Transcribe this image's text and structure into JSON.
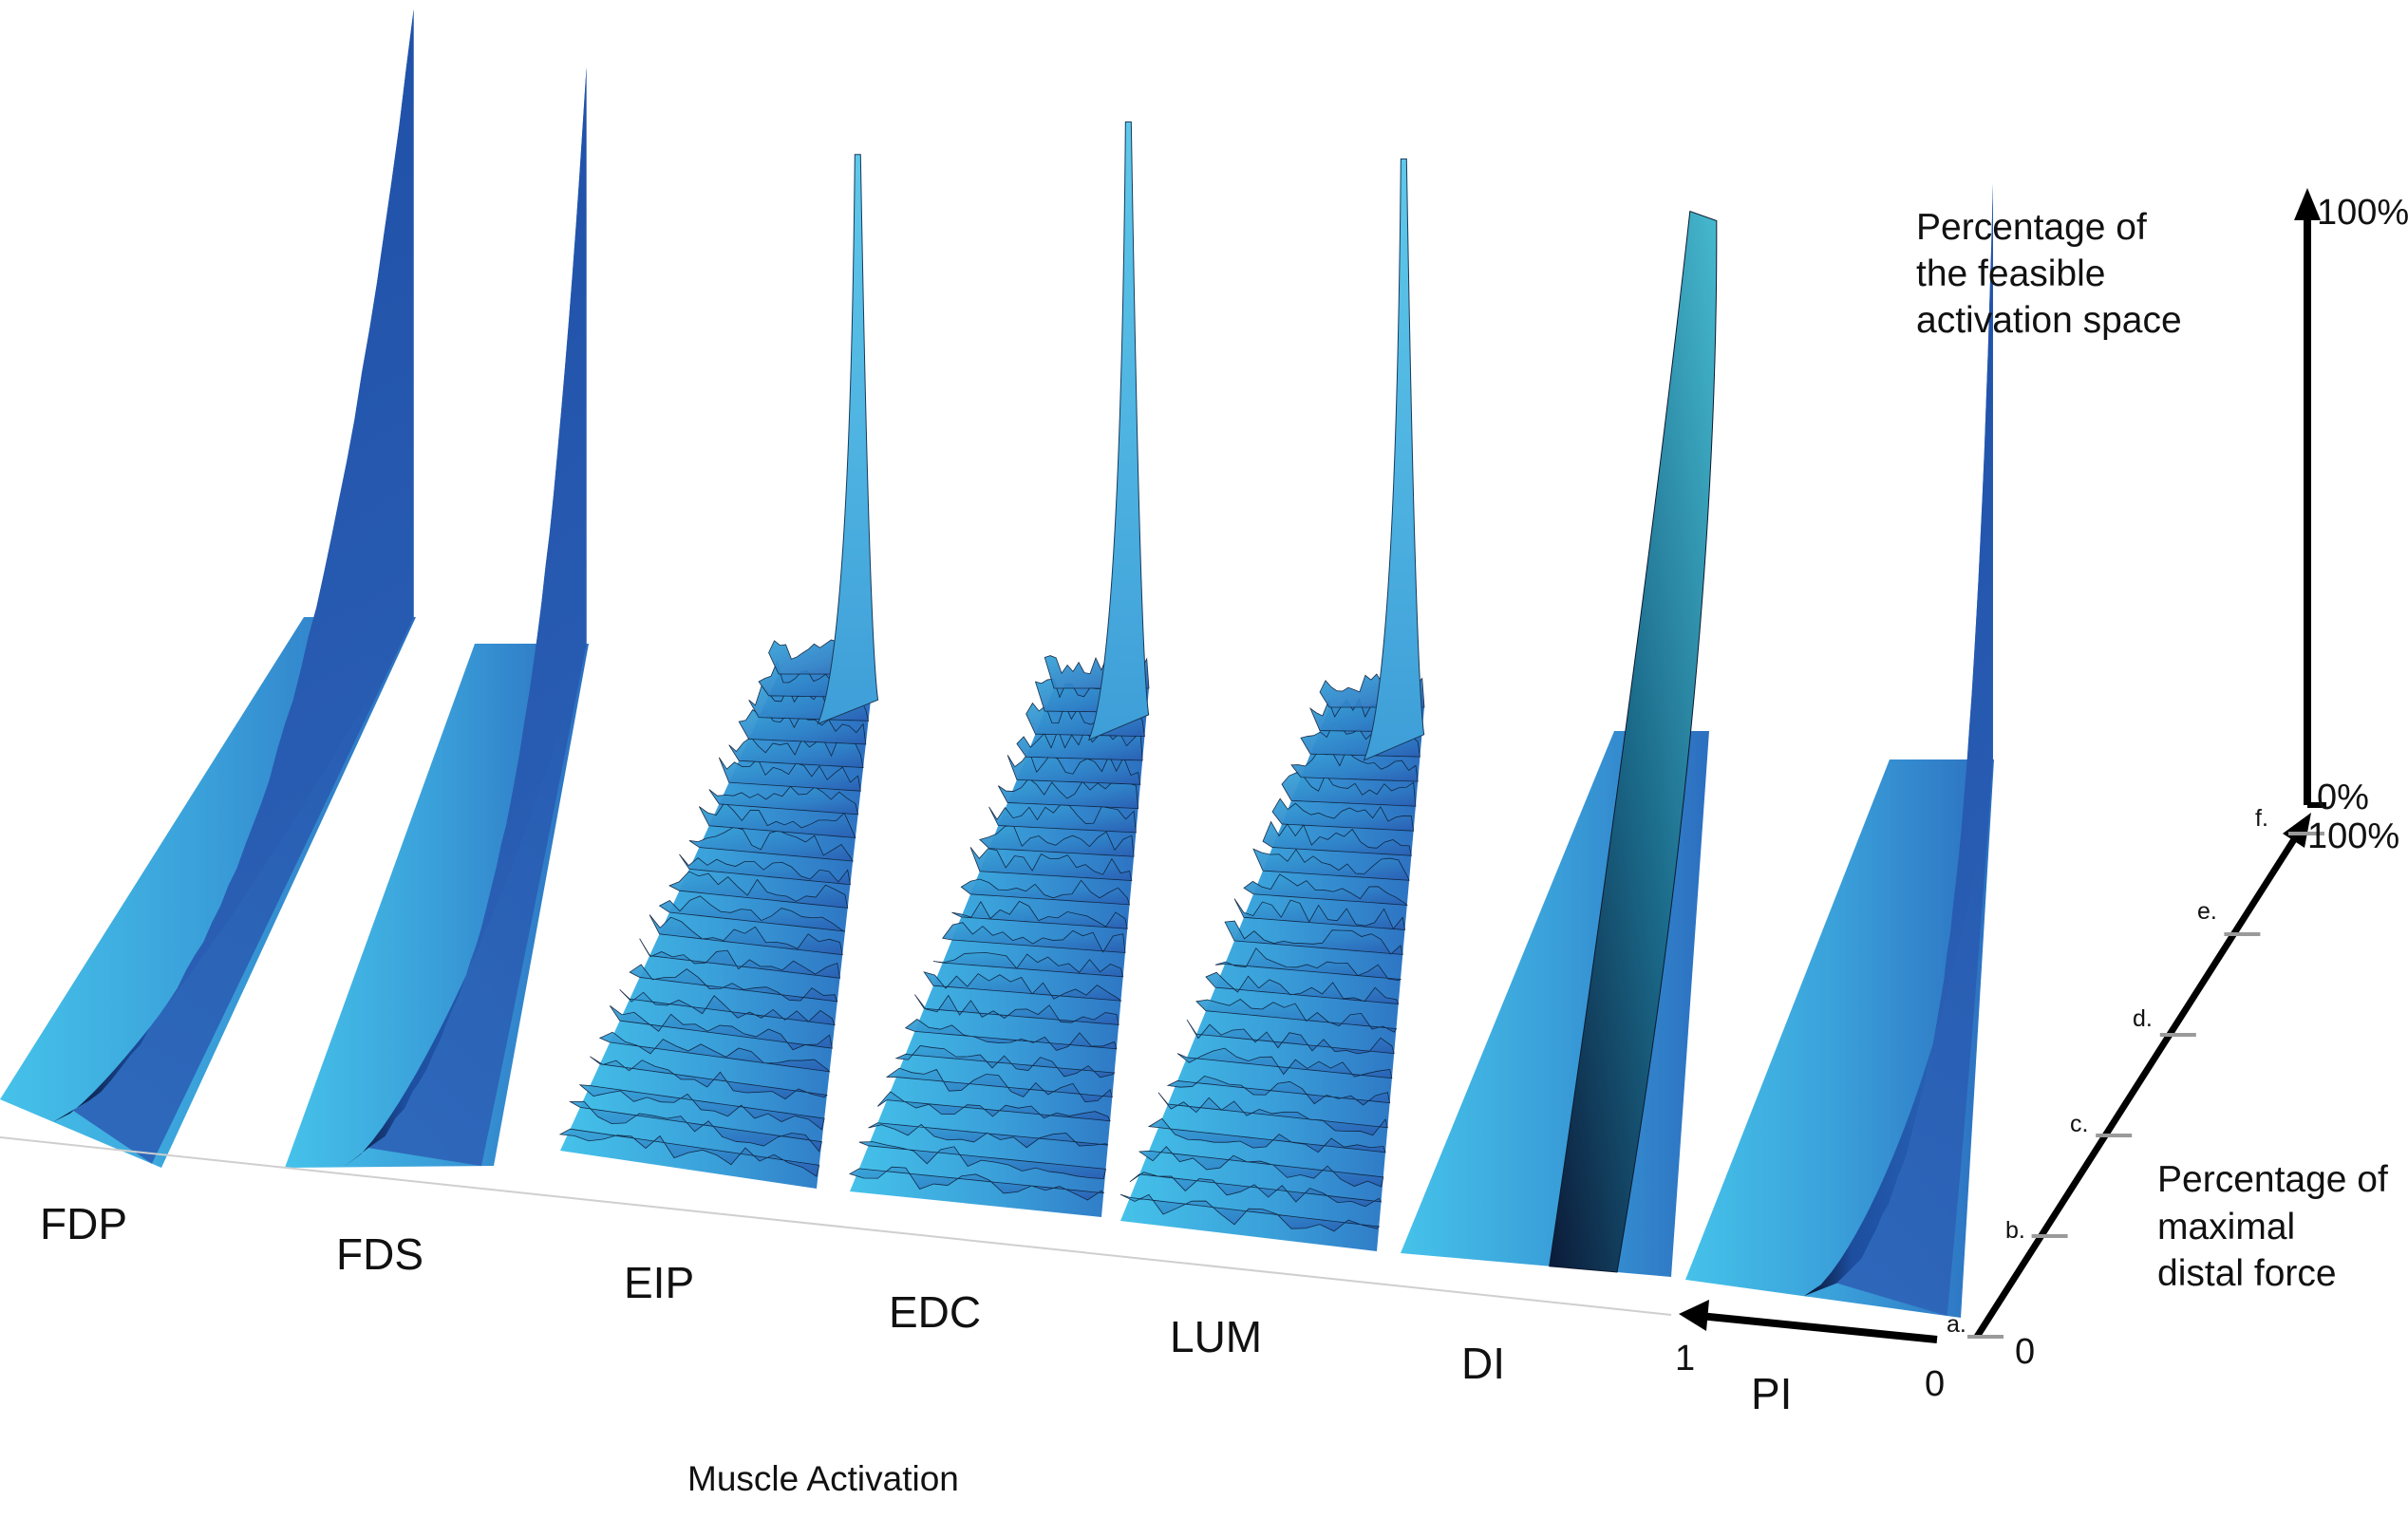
{
  "chart_data": {
    "type": "surface3d",
    "title": "",
    "xlabel": "Muscle Activation",
    "x_axis_ticks": [
      "0",
      "1"
    ],
    "y_axis_label_lines": [
      "Percentage of",
      "maximal",
      "distal force"
    ],
    "y_axis_ticks": [
      "0",
      "100%"
    ],
    "y_axis_levels": [
      "a.",
      "b.",
      "c.",
      "d.",
      "e.",
      "f."
    ],
    "z_axis_label_lines": [
      "Percentage of",
      "the feasible",
      "activation space"
    ],
    "z_axis_ticks": [
      "0%",
      "100%"
    ],
    "x_range": [
      0,
      1
    ],
    "force_range_percent": [
      0,
      100
    ],
    "z_range_percent": [
      0,
      100
    ],
    "series": [
      {
        "name": "FDP",
        "low_level": 0.45,
        "high_level": 0.98,
        "peak_height": 100
      },
      {
        "name": "FDS",
        "low_level": 0.4,
        "high_level": 0.98,
        "peak_height": 95
      },
      {
        "name": "EIP",
        "low_level": 0.0,
        "high_level": 0.85,
        "peak_height": 90
      },
      {
        "name": "EDC",
        "low_level": 0.0,
        "high_level": 0.8,
        "peak_height": 98
      },
      {
        "name": "LUM",
        "low_level": 0.0,
        "high_level": 0.8,
        "peak_height": 95
      },
      {
        "name": "DI",
        "low_level": 0.55,
        "high_level": 0.92,
        "peak_height": 92
      },
      {
        "name": "PI",
        "low_level": 0.55,
        "high_level": 0.99,
        "peak_height": 94
      }
    ],
    "colors": {
      "light": "#3cb4e0",
      "mid": "#2f78c4",
      "dark": "#1a3f8c",
      "shadow": "#06122b"
    }
  }
}
